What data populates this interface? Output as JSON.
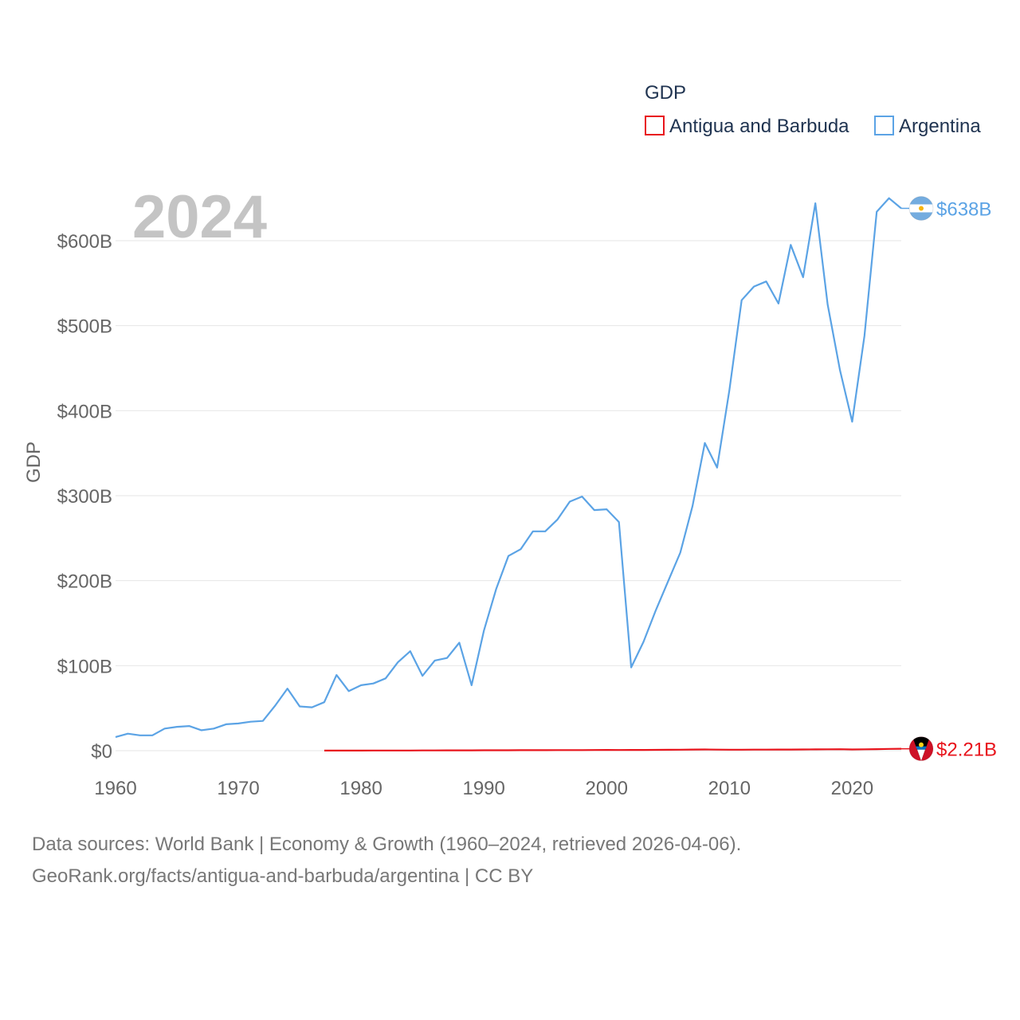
{
  "chart_data": {
    "type": "line",
    "legend_title": "GDP",
    "year_label": "2024",
    "ylabel": "GDP",
    "ylim": [
      0,
      660
    ],
    "yticks": [
      0,
      100,
      200,
      300,
      400,
      500,
      600
    ],
    "ytick_labels": [
      "$0",
      "$100B",
      "$200B",
      "$300B",
      "$400B",
      "$500B",
      "$600B"
    ],
    "xlim": [
      1960,
      2024
    ],
    "xticks": [
      1960,
      1970,
      1980,
      1990,
      2000,
      2010,
      2020
    ],
    "xtick_labels": [
      "1960",
      "1970",
      "1980",
      "1990",
      "2000",
      "2010",
      "2020"
    ],
    "series": [
      {
        "name": "Antigua and Barbuda",
        "color": "#e8141c",
        "end_label": "$2.21B",
        "x": [
          1977,
          1978,
          1979,
          1980,
          1981,
          1982,
          1983,
          1984,
          1985,
          1986,
          1987,
          1988,
          1989,
          1990,
          1991,
          1992,
          1993,
          1994,
          1995,
          1996,
          1997,
          1998,
          1999,
          2000,
          2001,
          2002,
          2003,
          2004,
          2005,
          2006,
          2007,
          2008,
          2009,
          2010,
          2011,
          2012,
          2013,
          2014,
          2015,
          2016,
          2017,
          2018,
          2019,
          2020,
          2021,
          2022,
          2023,
          2024
        ],
        "values": [
          0.08,
          0.1,
          0.12,
          0.14,
          0.16,
          0.18,
          0.19,
          0.22,
          0.25,
          0.29,
          0.33,
          0.37,
          0.41,
          0.46,
          0.48,
          0.5,
          0.52,
          0.56,
          0.58,
          0.61,
          0.65,
          0.69,
          0.73,
          0.8,
          0.79,
          0.81,
          0.85,
          0.92,
          1.0,
          1.16,
          1.28,
          1.4,
          1.24,
          1.15,
          1.14,
          1.21,
          1.19,
          1.28,
          1.34,
          1.44,
          1.47,
          1.6,
          1.66,
          1.41,
          1.56,
          1.79,
          2.03,
          2.21
        ]
      },
      {
        "name": "Argentina",
        "color": "#5ba3e5",
        "end_label": "$638B",
        "x": [
          1960,
          1961,
          1962,
          1963,
          1964,
          1965,
          1966,
          1967,
          1968,
          1969,
          1970,
          1971,
          1972,
          1973,
          1974,
          1975,
          1976,
          1977,
          1978,
          1979,
          1980,
          1981,
          1982,
          1983,
          1984,
          1985,
          1986,
          1987,
          1988,
          1989,
          1990,
          1991,
          1992,
          1993,
          1994,
          1995,
          1996,
          1997,
          1998,
          1999,
          2000,
          2001,
          2002,
          2003,
          2004,
          2005,
          2006,
          2007,
          2008,
          2009,
          2010,
          2011,
          2012,
          2013,
          2014,
          2015,
          2016,
          2017,
          2018,
          2019,
          2020,
          2021,
          2022,
          2023,
          2024
        ],
        "values": [
          16,
          20,
          18,
          18,
          26,
          28,
          29,
          24,
          26,
          31,
          32,
          34,
          35,
          53,
          73,
          52,
          51,
          57,
          89,
          70,
          77,
          79,
          85,
          104,
          117,
          88,
          106,
          109,
          127,
          77,
          141,
          190,
          229,
          237,
          258,
          258,
          272,
          293,
          299,
          283,
          284,
          269,
          98,
          128,
          165,
          199,
          233,
          288,
          362,
          333,
          424,
          530,
          546,
          552,
          526,
          595,
          557,
          644,
          525,
          448,
          387,
          488,
          634,
          650,
          638
        ]
      }
    ]
  },
  "footer": {
    "line1": "Data sources: World Bank | Economy & Growth (1960–2024, retrieved 2026-04-06).",
    "line2": "GeoRank.org/facts/antigua-and-barbuda/argentina | CC BY"
  },
  "icons": {
    "argentina_flag": "argentina-flag-icon",
    "antigua_flag": "antigua-and-barbuda-flag-icon"
  }
}
